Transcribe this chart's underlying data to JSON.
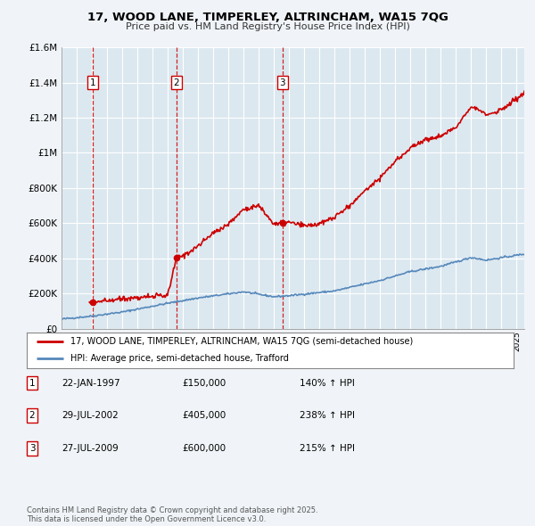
{
  "title": "17, WOOD LANE, TIMPERLEY, ALTRINCHAM, WA15 7QG",
  "subtitle": "Price paid vs. HM Land Registry's House Price Index (HPI)",
  "bg_color": "#f0f4f8",
  "plot_bg_color": "#dce8f0",
  "grid_color": "#ffffff",
  "ylim": [
    0,
    1600000
  ],
  "yticks": [
    0,
    200000,
    400000,
    600000,
    800000,
    1000000,
    1200000,
    1400000,
    1600000
  ],
  "ytick_labels": [
    "£0",
    "£200K",
    "£400K",
    "£600K",
    "£800K",
    "£1M",
    "£1.2M",
    "£1.4M",
    "£1.6M"
  ],
  "sale_prices": [
    150000,
    405000,
    600000
  ],
  "sale_labels": [
    "1",
    "2",
    "3"
  ],
  "sale_year_floats": [
    1997.057,
    2002.572,
    2009.572
  ],
  "sale_line_color": "#cc0000",
  "hpi_line_color": "#5588bb",
  "sale_marker_color": "#cc0000",
  "vline_color": "#cc0000",
  "legend_label_sale": "17, WOOD LANE, TIMPERLEY, ALTRINCHAM, WA15 7QG (semi-detached house)",
  "legend_label_hpi": "HPI: Average price, semi-detached house, Trafford",
  "table_rows": [
    [
      "1",
      "22-JAN-1997",
      "£150,000",
      "140% ↑ HPI"
    ],
    [
      "2",
      "29-JUL-2002",
      "£405,000",
      "238% ↑ HPI"
    ],
    [
      "3",
      "27-JUL-2009",
      "£600,000",
      "215% ↑ HPI"
    ]
  ],
  "footnote": "Contains HM Land Registry data © Crown copyright and database right 2025.\nThis data is licensed under the Open Government Licence v3.0.",
  "xmin": 1995.0,
  "xmax": 2025.5
}
